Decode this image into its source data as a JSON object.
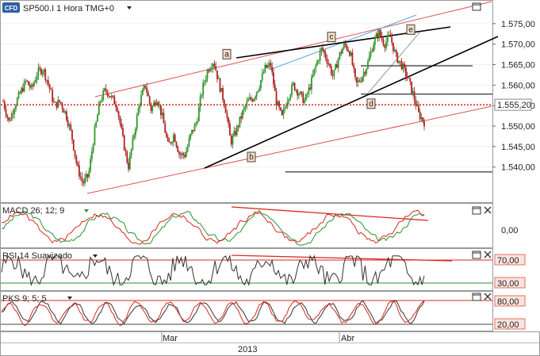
{
  "chart_data": [
    {
      "type": "candlestick",
      "title": "SP500.I 1 Hora TMG+0",
      "badge": "CFD",
      "x_tick_labels": [
        "Mar",
        "Abr"
      ],
      "x_year_label": "2013",
      "ylim": [
        1532,
        1580
      ],
      "y_ticks": [
        1540,
        1545,
        1550,
        1555,
        1560,
        1565,
        1570,
        1575
      ],
      "y_tick_labels": [
        "1.540,00",
        "1.545,00",
        "1.550,00",
        "1.555,00",
        "1.560,00",
        "1.565,00",
        "1.570,00",
        "1.575,00"
      ],
      "current_price": 1555.2,
      "current_price_label": "1.555,20",
      "price_path": [
        1556,
        1551,
        1555,
        1558,
        1561,
        1559,
        1563,
        1564,
        1560,
        1555,
        1556,
        1553,
        1548,
        1540,
        1536,
        1538,
        1548,
        1556,
        1559,
        1557,
        1555,
        1547,
        1540,
        1548,
        1556,
        1560,
        1554,
        1557,
        1552,
        1545,
        1548,
        1543,
        1543,
        1548,
        1551,
        1559,
        1564,
        1566,
        1560,
        1555,
        1546,
        1549,
        1553,
        1556,
        1557,
        1560,
        1564,
        1565,
        1556,
        1552,
        1557,
        1560,
        1558,
        1556,
        1560,
        1565,
        1569,
        1566,
        1562,
        1567,
        1570,
        1568,
        1560,
        1562,
        1565,
        1570,
        1573,
        1570,
        1572,
        1567,
        1565,
        1562,
        1558,
        1553,
        1551
      ],
      "wave_labels": [
        {
          "label": "a",
          "price": 1566
        },
        {
          "label": "b",
          "price": 1544
        },
        {
          "label": "c",
          "price": 1570
        },
        {
          "label": "d",
          "price": 1557
        },
        {
          "label": "e",
          "price": 1572
        }
      ],
      "horizontal_levels": [
        1564.7,
        1557.8,
        1538.8
      ]
    },
    {
      "type": "line",
      "title": "MACD 26; 12; 9",
      "y_tick_labels": [
        "0,00"
      ],
      "series": [
        {
          "color": "#2f8f2f"
        },
        {
          "color": "#d9281e"
        }
      ]
    },
    {
      "type": "line",
      "title": "RSI 14 Suavizado",
      "y_tick_labels": [
        "70,00",
        "30,00"
      ],
      "levels": [
        70,
        30
      ],
      "series": [
        {
          "color": "#333333"
        }
      ]
    },
    {
      "type": "line",
      "title": "PKS 9; 5; 5",
      "y_tick_labels": [
        "80,00",
        "20,00"
      ],
      "levels": [
        80,
        20
      ],
      "series": [
        {
          "color": "#333333"
        },
        {
          "color": "#d9281e"
        }
      ]
    }
  ]
}
